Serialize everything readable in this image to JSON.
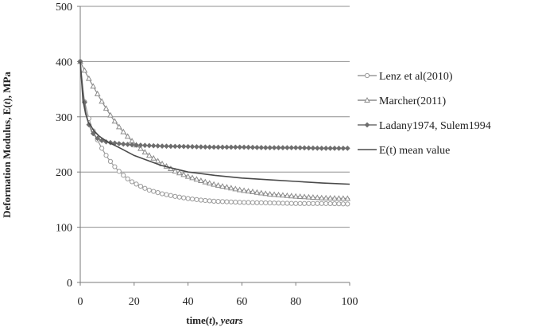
{
  "chart_data": {
    "type": "line",
    "title": "",
    "xlabel_main": "time(",
    "xlabel_var": "t",
    "xlabel_close": "), ",
    "xlabel_unit": "years",
    "ylabel_main": "Deformation Modulus, E(",
    "ylabel_var": "t",
    "ylabel_close": "), MPa",
    "xlim": [
      0,
      100
    ],
    "ylim": [
      0,
      500
    ],
    "x_ticks": [
      "0",
      "20",
      "40",
      "60",
      "80",
      "100"
    ],
    "y_ticks": [
      "0",
      "100",
      "200",
      "300",
      "400",
      "500"
    ],
    "grid": "horizontal",
    "legend_position": "right",
    "series": [
      {
        "name": "Lenz et al(2010)",
        "marker": "circle",
        "color": "#9a9a9a",
        "points": [
          [
            0,
            400
          ],
          [
            1,
            338
          ],
          [
            2,
            320
          ],
          [
            3,
            300
          ],
          [
            4,
            285
          ],
          [
            5,
            272
          ],
          [
            6,
            262
          ],
          [
            8,
            243
          ],
          [
            10,
            227
          ],
          [
            12,
            214
          ],
          [
            14,
            203
          ],
          [
            16,
            194
          ],
          [
            18,
            186
          ],
          [
            20,
            180
          ],
          [
            25,
            168
          ],
          [
            30,
            161
          ],
          [
            35,
            156
          ],
          [
            40,
            152
          ],
          [
            45,
            149
          ],
          [
            50,
            147
          ],
          [
            60,
            145
          ],
          [
            70,
            144
          ],
          [
            80,
            143
          ],
          [
            90,
            143
          ],
          [
            100,
            142
          ]
        ]
      },
      {
        "name": "Marcher(2011)",
        "marker": "triangle",
        "color": "#8c8c8c",
        "points": [
          [
            0,
            400
          ],
          [
            1,
            390
          ],
          [
            2,
            380
          ],
          [
            4,
            362
          ],
          [
            6,
            345
          ],
          [
            8,
            328
          ],
          [
            10,
            312
          ],
          [
            12,
            297
          ],
          [
            15,
            278
          ],
          [
            20,
            252
          ],
          [
            25,
            232
          ],
          [
            30,
            216
          ],
          [
            35,
            202
          ],
          [
            40,
            192
          ],
          [
            45,
            184
          ],
          [
            50,
            177
          ],
          [
            60,
            167
          ],
          [
            70,
            160
          ],
          [
            80,
            156
          ],
          [
            90,
            153
          ],
          [
            100,
            152
          ]
        ]
      },
      {
        "name": "Ladany1974, Sulem1994",
        "marker": "diamond",
        "color": "#6e6e6e",
        "points": [
          [
            0,
            400
          ],
          [
            1,
            350
          ],
          [
            2,
            310
          ],
          [
            3,
            288
          ],
          [
            4,
            276
          ],
          [
            5,
            268
          ],
          [
            6,
            262
          ],
          [
            8,
            257
          ],
          [
            10,
            254
          ],
          [
            15,
            251
          ],
          [
            20,
            249
          ],
          [
            30,
            247
          ],
          [
            40,
            246
          ],
          [
            50,
            245
          ],
          [
            60,
            245
          ],
          [
            70,
            244
          ],
          [
            80,
            244
          ],
          [
            90,
            243
          ],
          [
            100,
            243
          ]
        ]
      },
      {
        "name": "E(t) mean value",
        "marker": "none",
        "color": "#4a4a4a",
        "points": [
          [
            0,
            400
          ],
          [
            1,
            330
          ],
          [
            2,
            305
          ],
          [
            3,
            290
          ],
          [
            5,
            275
          ],
          [
            7,
            265
          ],
          [
            10,
            255
          ],
          [
            15,
            243
          ],
          [
            20,
            230
          ],
          [
            30,
            212
          ],
          [
            40,
            200
          ],
          [
            50,
            194
          ],
          [
            60,
            189
          ],
          [
            70,
            186
          ],
          [
            80,
            183
          ],
          [
            90,
            180
          ],
          [
            100,
            178
          ]
        ]
      }
    ]
  }
}
